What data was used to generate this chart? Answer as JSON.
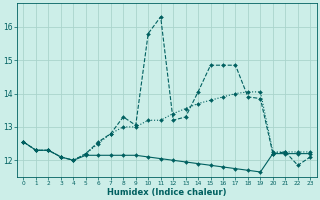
{
  "xlabel": "Humidex (Indice chaleur)",
  "background_color": "#cceee8",
  "grid_color": "#aad4cc",
  "line_color": "#006060",
  "xlim": [
    -0.5,
    23.5
  ],
  "ylim": [
    11.5,
    16.7
  ],
  "yticks": [
    12,
    13,
    14,
    15,
    16
  ],
  "xticks": [
    0,
    1,
    2,
    3,
    4,
    5,
    6,
    7,
    8,
    9,
    10,
    11,
    12,
    13,
    14,
    15,
    16,
    17,
    18,
    19,
    20,
    21,
    22,
    23
  ],
  "s1_x": [
    0,
    1,
    2,
    3,
    4,
    5,
    6,
    7,
    8,
    9,
    10,
    11,
    12,
    13,
    14,
    15,
    16,
    17,
    18,
    19,
    20,
    21,
    22,
    23
  ],
  "s1_y": [
    12.55,
    12.3,
    12.3,
    12.1,
    12.0,
    12.2,
    12.55,
    12.8,
    13.3,
    13.05,
    15.8,
    16.3,
    13.2,
    13.3,
    14.05,
    14.85,
    14.85,
    14.85,
    13.9,
    13.85,
    12.2,
    12.25,
    11.85,
    12.1
  ],
  "s2_x": [
    0,
    1,
    2,
    3,
    4,
    5,
    6,
    7,
    8,
    9,
    10,
    11,
    12,
    13,
    14,
    15,
    16,
    17,
    18,
    19,
    20,
    21,
    22,
    23
  ],
  "s2_y": [
    12.55,
    12.3,
    12.3,
    12.1,
    12.0,
    12.2,
    12.5,
    12.8,
    13.0,
    13.0,
    13.2,
    13.2,
    13.4,
    13.55,
    13.7,
    13.8,
    13.9,
    14.0,
    14.05,
    14.05,
    12.25,
    12.25,
    12.25,
    12.25
  ],
  "s3_x": [
    0,
    1,
    2,
    3,
    4,
    5,
    6,
    7,
    8,
    9,
    10,
    11,
    12,
    13,
    14,
    15,
    16,
    17,
    18,
    19,
    20,
    21,
    22,
    23
  ],
  "s3_y": [
    12.55,
    12.3,
    12.3,
    12.1,
    12.0,
    12.15,
    12.15,
    12.15,
    12.15,
    12.15,
    12.1,
    12.05,
    12.0,
    11.95,
    11.9,
    11.85,
    11.8,
    11.75,
    11.7,
    11.65,
    12.2,
    12.2,
    12.2,
    12.2
  ]
}
